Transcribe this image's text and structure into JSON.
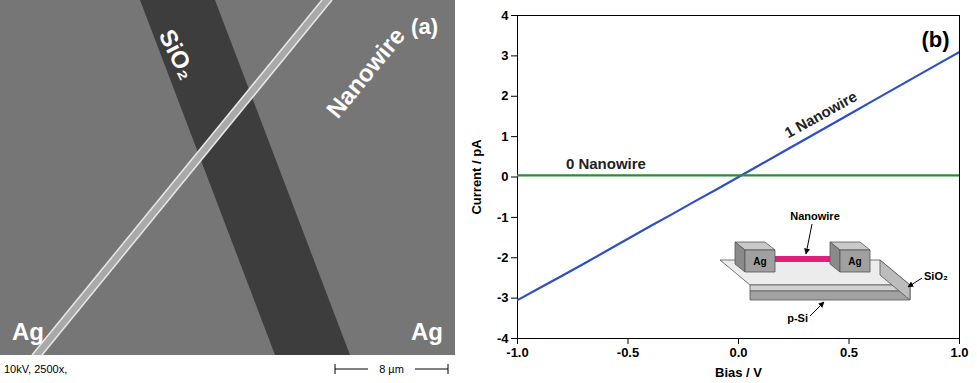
{
  "micrograph": {
    "panel_label": "(a)",
    "oxide_label": "SiO₂",
    "wire_label": "Nanowire",
    "electrode_labels": [
      "Ag",
      "Ag"
    ],
    "info": "10kV, 2500x,",
    "scale_bar": "8 µm"
  },
  "chart_data": {
    "type": "line",
    "panel_label": "(b)",
    "x_label": "Bias / V",
    "y_label": "Current / pA",
    "xlim": [
      -1,
      1
    ],
    "xticks": [
      {
        "value": -1,
        "label": "-1.0"
      },
      {
        "value": -0.5,
        "label": "-0.5"
      },
      {
        "value": 0,
        "label": "0.0"
      },
      {
        "value": 0.5,
        "label": "0.5"
      },
      {
        "value": 1,
        "label": "1.0"
      }
    ],
    "ylim": [
      -4,
      4
    ],
    "yticks": [
      -4,
      -3,
      -2,
      -1,
      0,
      1,
      2,
      3,
      4
    ],
    "x": [
      -1,
      -0.9,
      -0.8,
      -0.7,
      -0.6,
      -0.5,
      -0.4,
      -0.3,
      -0.2,
      -0.1,
      0,
      0.1,
      0.2,
      0.3,
      0.4,
      0.5,
      0.6,
      0.7,
      0.8,
      0.9,
      1
    ],
    "series": [
      {
        "name": "1 Nanowire",
        "color": "#2f4fc4",
        "values": [
          -3.05,
          -2.75,
          -2.45,
          -2.15,
          -1.84,
          -1.53,
          -1.22,
          -0.92,
          -0.61,
          -0.31,
          0,
          0.31,
          0.62,
          0.93,
          1.24,
          1.55,
          1.86,
          2.17,
          2.48,
          2.79,
          3.1
        ]
      },
      {
        "name": "0 Nanowire",
        "color": "#2e8b3a",
        "values": [
          0.04,
          0.04,
          0.04,
          0.04,
          0.04,
          0.04,
          0.04,
          0.04,
          0.04,
          0.04,
          0.04,
          0.04,
          0.04,
          0.04,
          0.04,
          0.04,
          0.04,
          0.04,
          0.04,
          0.04,
          0.04
        ]
      }
    ],
    "inset": {
      "wire_label": "Nanowire",
      "electrode_labels": [
        "Ag",
        "Ag"
      ],
      "oxide_label": "SiO₂",
      "substrate_label": "p-Si"
    }
  }
}
